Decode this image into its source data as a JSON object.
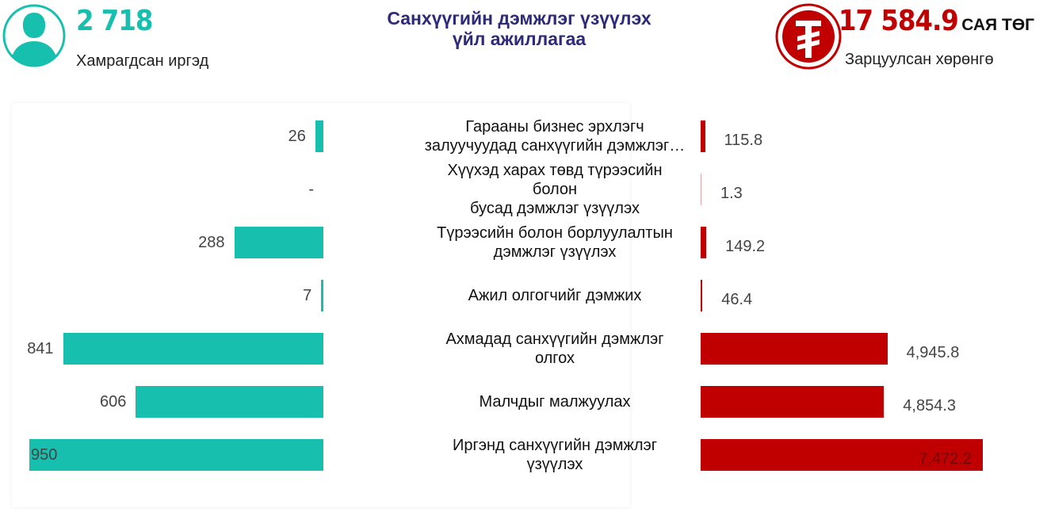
{
  "header": {
    "people_value": "2 718",
    "people_label": "Хамрагдсан иргэд",
    "title": "Санхүүгийн дэмжлэг үзүүлэх\nүйл ажиллагаа",
    "money_value": "17 584.9",
    "money_unit": "САЯ ТӨГ",
    "money_label": "Зарцуулсан хөрөнгө"
  },
  "chart_data": [
    {
      "type": "bar",
      "orientation": "horizontal",
      "direction": "left",
      "color": "#17bfae",
      "categories": [
        "Гарааны бизнес эрхлэгч\nзалуучуудад санхүүгийн дэмжлэг…",
        "Хүүхэд харах төвд түрээсийн болон\nбусад дэмжлэг үзүүлэх",
        "Түрээсийн болон борлуулалтын\nдэмжлэг үзүүлэх",
        "Ажил олгогчийг дэмжих",
        "Ахмадад санхүүгийн дэмжлэг\nолгох",
        "Малчдыг малжуулах",
        "Иргэнд санхүүгийн дэмжлэг\nүзүүлэх"
      ],
      "values": [
        26,
        null,
        288,
        7,
        841,
        606,
        950
      ],
      "value_labels": [
        "26",
        "-",
        "288",
        "7",
        "841",
        "606",
        "950"
      ]
    },
    {
      "type": "bar",
      "orientation": "horizontal",
      "direction": "right",
      "color": "#c00000",
      "values": [
        115.8,
        1.3,
        149.2,
        46.4,
        4945.8,
        4854.3,
        7472.2
      ],
      "value_labels": [
        "115.8",
        "1.3",
        "149.2",
        "46.4",
        "4,945.8",
        "4,854.3",
        "7,472.2"
      ]
    }
  ]
}
